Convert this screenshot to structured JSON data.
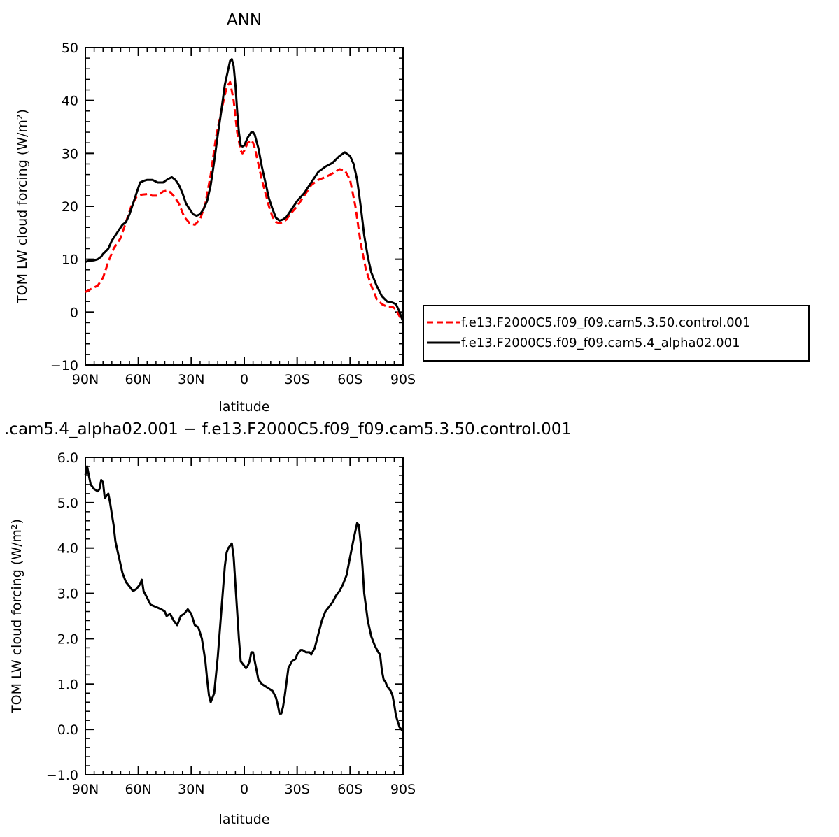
{
  "chart_data": [
    {
      "type": "line",
      "title": "ANN",
      "xlabel": "latitude",
      "ylabel": "TOM LW cloud forcing (W/m²)",
      "xlim": [
        90,
        -90
      ],
      "ylim": [
        -10,
        50
      ],
      "yticks": [
        "50",
        "40",
        "30",
        "20",
        "10",
        "0",
        "−10"
      ],
      "ytick_values": [
        50,
        40,
        30,
        20,
        10,
        0,
        -10
      ],
      "xticks": [
        "90N",
        "60N",
        "30N",
        "0",
        "30S",
        "60S",
        "90S"
      ],
      "xtick_values": [
        90,
        60,
        30,
        0,
        -30,
        -60,
        -90
      ],
      "legend_position": "right",
      "series": [
        {
          "name": "f.e13.F2000C5.f09_f09.cam5.3.50.control.001",
          "color": "#ff0000",
          "dash": "dashed",
          "x": [
            90,
            86,
            83,
            80,
            77,
            74,
            70,
            67,
            64,
            61,
            58,
            55,
            52,
            49,
            46,
            43,
            40,
            37,
            34,
            31,
            28,
            25,
            22,
            19,
            16,
            13,
            10,
            8,
            6,
            4,
            2,
            1,
            0,
            -2,
            -4,
            -5,
            -6,
            -8,
            -10,
            -12,
            -14,
            -16,
            -18,
            -20,
            -22,
            -24,
            -26,
            -30,
            -34,
            -38,
            -42,
            -46,
            -50,
            -54,
            -57,
            -60,
            -63,
            -66,
            -69,
            -72,
            -75,
            -78,
            -81,
            -84,
            -86,
            -88,
            -90
          ],
          "values": [
            3.8,
            4.5,
            5.0,
            6.5,
            9.5,
            12.0,
            14.0,
            17.0,
            20.0,
            21.8,
            22.2,
            22.3,
            22.0,
            22.0,
            22.8,
            23.0,
            22.0,
            20.5,
            18.0,
            16.8,
            16.5,
            17.5,
            20.5,
            26.0,
            33.0,
            38.0,
            42.5,
            43.5,
            40.0,
            34.0,
            30.5,
            30.0,
            30.5,
            32.0,
            32.5,
            32.0,
            31.0,
            28.0,
            25.0,
            22.5,
            20.0,
            18.0,
            17.0,
            16.8,
            17.0,
            17.5,
            18.5,
            20.0,
            22.0,
            24.0,
            25.0,
            25.5,
            26.2,
            27.0,
            26.8,
            25.0,
            20.0,
            13.0,
            8.0,
            5.0,
            2.5,
            1.5,
            1.0,
            1.0,
            0.5,
            -0.8,
            -1.8
          ]
        },
        {
          "name": "f.e13.F2000C5.f09_f09.cam5.4_alpha02.001",
          "color": "#000000",
          "dash": "solid",
          "x": [
            90,
            88,
            85,
            83,
            81,
            80,
            79,
            77,
            75,
            73,
            71,
            69,
            67,
            65,
            63,
            61,
            59,
            57,
            55,
            52,
            49,
            46,
            43,
            41,
            39,
            37,
            35,
            33,
            31,
            29,
            27,
            25,
            23,
            21,
            19,
            17,
            15,
            13,
            11,
            9,
            8,
            7,
            6,
            5,
            4,
            3,
            2,
            1,
            0,
            -2,
            -4,
            -5,
            -6,
            -8,
            -10,
            -12,
            -14,
            -16,
            -18,
            -20,
            -22,
            -24,
            -26,
            -28,
            -30,
            -34,
            -38,
            -42,
            -46,
            -50,
            -54,
            -57,
            -60,
            -62,
            -64,
            -66,
            -68,
            -70,
            -72,
            -75,
            -78,
            -81,
            -84,
            -86,
            -88,
            -90
          ],
          "values": [
            9.5,
            9.7,
            9.8,
            10.0,
            10.5,
            11.0,
            11.3,
            12.0,
            13.5,
            14.5,
            15.5,
            16.5,
            17.0,
            18.5,
            20.5,
            22.5,
            24.5,
            24.8,
            25.0,
            25.0,
            24.5,
            24.5,
            25.2,
            25.5,
            25.0,
            24.0,
            22.5,
            20.5,
            19.5,
            18.5,
            18.2,
            18.5,
            19.5,
            21.0,
            24.0,
            28.5,
            33.5,
            38.0,
            43.0,
            46.0,
            47.5,
            47.8,
            46.5,
            43.0,
            38.0,
            34.0,
            31.5,
            31.3,
            31.5,
            33.0,
            34.0,
            34.0,
            33.5,
            31.0,
            27.5,
            24.5,
            21.5,
            19.5,
            17.8,
            17.3,
            17.5,
            18.0,
            19.0,
            20.0,
            21.0,
            22.5,
            24.5,
            26.5,
            27.5,
            28.2,
            29.5,
            30.2,
            29.5,
            28.0,
            25.0,
            20.0,
            14.5,
            10.5,
            7.5,
            5.0,
            3.0,
            2.0,
            1.8,
            1.5,
            0.0,
            -1.8
          ]
        }
      ]
    },
    {
      "type": "line",
      "title": ".cam5.4_alpha02.001 − f.e13.F2000C5.f09_f09.cam5.3.50.control.001",
      "xlabel": "latitude",
      "ylabel": "TOM LW cloud forcing (W/m²)",
      "xlim": [
        90,
        -90
      ],
      "ylim": [
        -1.0,
        6.0
      ],
      "yticks": [
        "6.0",
        "5.0",
        "4.0",
        "3.0",
        "2.0",
        "1.0",
        "0.0",
        "−1.0"
      ],
      "ytick_values": [
        6,
        5,
        4,
        3,
        2,
        1,
        0,
        -1
      ],
      "xticks": [
        "90N",
        "60N",
        "30N",
        "0",
        "30S",
        "60S",
        "90S"
      ],
      "xtick_values": [
        90,
        60,
        30,
        0,
        -30,
        -60,
        -90
      ],
      "series": [
        {
          "color": "#000000",
          "dash": "solid",
          "x": [
            90,
            89,
            88,
            87,
            85,
            83,
            82,
            81,
            80,
            79,
            78,
            77,
            76,
            75,
            74,
            73,
            71,
            69,
            67,
            65,
            63,
            61,
            59,
            58,
            57,
            55,
            53,
            50,
            47,
            45,
            44,
            42,
            40,
            38,
            36,
            34,
            33,
            32,
            30,
            28,
            26,
            24,
            22,
            21,
            20,
            19,
            17,
            15,
            13,
            11,
            10,
            9,
            8,
            7,
            6,
            5,
            4,
            3,
            2,
            0,
            -1,
            -2,
            -3,
            -4,
            -5,
            -6,
            -7,
            -8,
            -10,
            -12,
            -14,
            -16,
            -18,
            -19,
            -20,
            -21,
            -22,
            -23,
            -25,
            -27,
            -29,
            -30,
            -32,
            -33,
            -35,
            -37,
            -38,
            -40,
            -42,
            -44,
            -46,
            -48,
            -50,
            -52,
            -54,
            -56,
            -58,
            -60,
            -62,
            -64,
            -65,
            -66,
            -67,
            -68,
            -70,
            -72,
            -74,
            -76,
            -77,
            -78,
            -79,
            -80,
            -81,
            -83,
            -84,
            -85,
            -86,
            -88,
            -89,
            -90
          ],
          "values": [
            5.6,
            5.8,
            5.6,
            5.4,
            5.3,
            5.25,
            5.3,
            5.5,
            5.45,
            5.1,
            5.15,
            5.2,
            5.0,
            4.75,
            4.5,
            4.15,
            3.8,
            3.45,
            3.25,
            3.15,
            3.05,
            3.1,
            3.2,
            3.3,
            3.05,
            2.9,
            2.75,
            2.7,
            2.65,
            2.6,
            2.5,
            2.55,
            2.4,
            2.3,
            2.5,
            2.55,
            2.6,
            2.65,
            2.55,
            2.3,
            2.25,
            2.0,
            1.5,
            1.1,
            0.75,
            0.6,
            0.8,
            1.6,
            2.6,
            3.6,
            3.9,
            4.0,
            4.05,
            4.1,
            3.8,
            3.2,
            2.6,
            2.0,
            1.5,
            1.4,
            1.35,
            1.4,
            1.5,
            1.7,
            1.7,
            1.5,
            1.3,
            1.1,
            1.0,
            0.95,
            0.9,
            0.85,
            0.7,
            0.55,
            0.35,
            0.35,
            0.5,
            0.75,
            1.35,
            1.5,
            1.55,
            1.65,
            1.75,
            1.75,
            1.7,
            1.7,
            1.65,
            1.8,
            2.1,
            2.4,
            2.6,
            2.7,
            2.8,
            2.95,
            3.05,
            3.2,
            3.4,
            3.8,
            4.2,
            4.55,
            4.5,
            4.1,
            3.6,
            3.0,
            2.4,
            2.05,
            1.85,
            1.7,
            1.65,
            1.3,
            1.1,
            1.05,
            0.95,
            0.85,
            0.75,
            0.55,
            0.3,
            0.05,
            0.0,
            -0.05
          ]
        }
      ]
    }
  ]
}
